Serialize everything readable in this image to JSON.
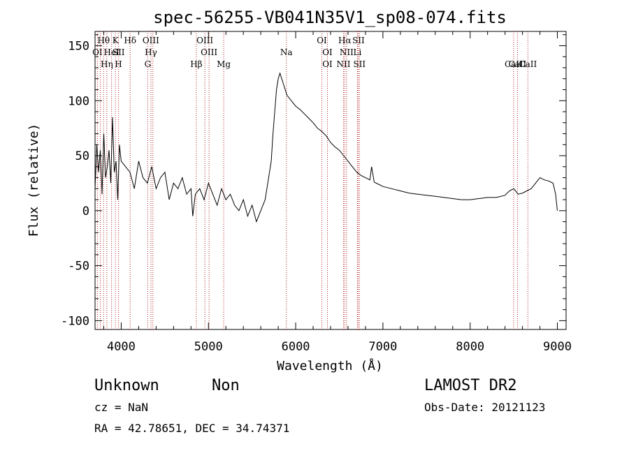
{
  "chart_data": {
    "type": "line",
    "title": "spec-56255-VB041N35V1_sp08-074.fits",
    "xlabel": "Wavelength (Å)",
    "ylabel": "Flux (relative)",
    "xlim": [
      3700,
      9100
    ],
    "ylim": [
      -108,
      163
    ],
    "xticks": [
      4000,
      5000,
      6000,
      7000,
      8000,
      9000
    ],
    "yticks": [
      -100,
      -50,
      0,
      50,
      100,
      150
    ],
    "grid": false,
    "series": [
      {
        "x": [
          3700,
          3720,
          3740,
          3760,
          3780,
          3800,
          3820,
          3840,
          3860,
          3880,
          3900,
          3920,
          3940,
          3960,
          3980,
          4000,
          4050,
          4100,
          4150,
          4200,
          4250,
          4300,
          4350,
          4400,
          4450,
          4500,
          4550,
          4600,
          4650,
          4700,
          4750,
          4800,
          4820,
          4850,
          4900,
          4950,
          5000,
          5050,
          5100,
          5150,
          5200,
          5250,
          5300,
          5350,
          5400,
          5450,
          5500,
          5550,
          5600,
          5650,
          5700,
          5720,
          5740,
          5760,
          5780,
          5800,
          5820,
          5840,
          5860,
          5880,
          5900,
          5950,
          6000,
          6050,
          6100,
          6150,
          6200,
          6250,
          6300,
          6350,
          6400,
          6450,
          6500,
          6550,
          6600,
          6650,
          6700,
          6750,
          6800,
          6850,
          6870,
          6900,
          6950,
          7000,
          7100,
          7200,
          7300,
          7400,
          7500,
          7600,
          7700,
          7800,
          7900,
          8000,
          8100,
          8200,
          8300,
          8400,
          8450,
          8500,
          8550,
          8600,
          8650,
          8700,
          8750,
          8800,
          8850,
          8900,
          8950,
          8980,
          9000
        ],
        "y": [
          20,
          60,
          35,
          55,
          15,
          70,
          30,
          40,
          55,
          25,
          85,
          35,
          45,
          10,
          60,
          45,
          40,
          35,
          20,
          45,
          30,
          25,
          40,
          20,
          30,
          35,
          10,
          25,
          20,
          30,
          15,
          20,
          -5,
          15,
          20,
          10,
          25,
          15,
          5,
          20,
          10,
          15,
          5,
          0,
          10,
          -5,
          5,
          -10,
          0,
          10,
          35,
          45,
          70,
          90,
          110,
          120,
          125,
          120,
          115,
          110,
          105,
          100,
          95,
          92,
          88,
          84,
          80,
          75,
          72,
          68,
          62,
          58,
          55,
          50,
          45,
          40,
          35,
          32,
          30,
          28,
          40,
          26,
          24,
          22,
          20,
          18,
          16,
          15,
          14,
          13,
          12,
          11,
          10,
          10,
          11,
          12,
          12,
          14,
          18,
          20,
          15,
          16,
          18,
          20,
          25,
          30,
          28,
          27,
          25,
          15,
          0
        ]
      }
    ],
    "annotations": {
      "lines": [
        "Hθ",
        "K",
        "Hδ",
        "OIII",
        "OIII",
        "OI",
        "Hα",
        "SII",
        "OI",
        "HeI",
        "SII",
        "Hγ",
        "OIII",
        "Na",
        "NII",
        "Li",
        "OI",
        "Hη",
        "H",
        "G",
        "Hβ",
        "Mg",
        "OI",
        "NII",
        "SII",
        "CaII",
        "CaII",
        "CaII"
      ],
      "positions": [
        3798,
        3934,
        4102,
        4340,
        4959,
        6300,
        6563,
        6720,
        3727,
        3889,
        3970,
        4341,
        5007,
        5893,
        6583,
        6708,
        6364,
        3835,
        3968,
        4304,
        4861,
        5175,
        6364,
        6548,
        6731,
        8498,
        8542,
        8662
      ],
      "markers": [
        3727,
        3760,
        3798,
        3835,
        3889,
        3934,
        3970,
        4102,
        4304,
        4341,
        4363,
        4861,
        4959,
        5007,
        5175,
        5893,
        6300,
        6364,
        6548,
        6563,
        6583,
        6708,
        6716,
        6731,
        8498,
        8542,
        8662
      ]
    },
    "footer": {
      "class": "Unknown",
      "subclass": "Non",
      "survey": "LAMOST DR2",
      "cz": "cz = NaN",
      "obs_date": "Obs-Date: 20121123",
      "coords": "RA =  42.78651, DEC =  34.74371"
    }
  }
}
